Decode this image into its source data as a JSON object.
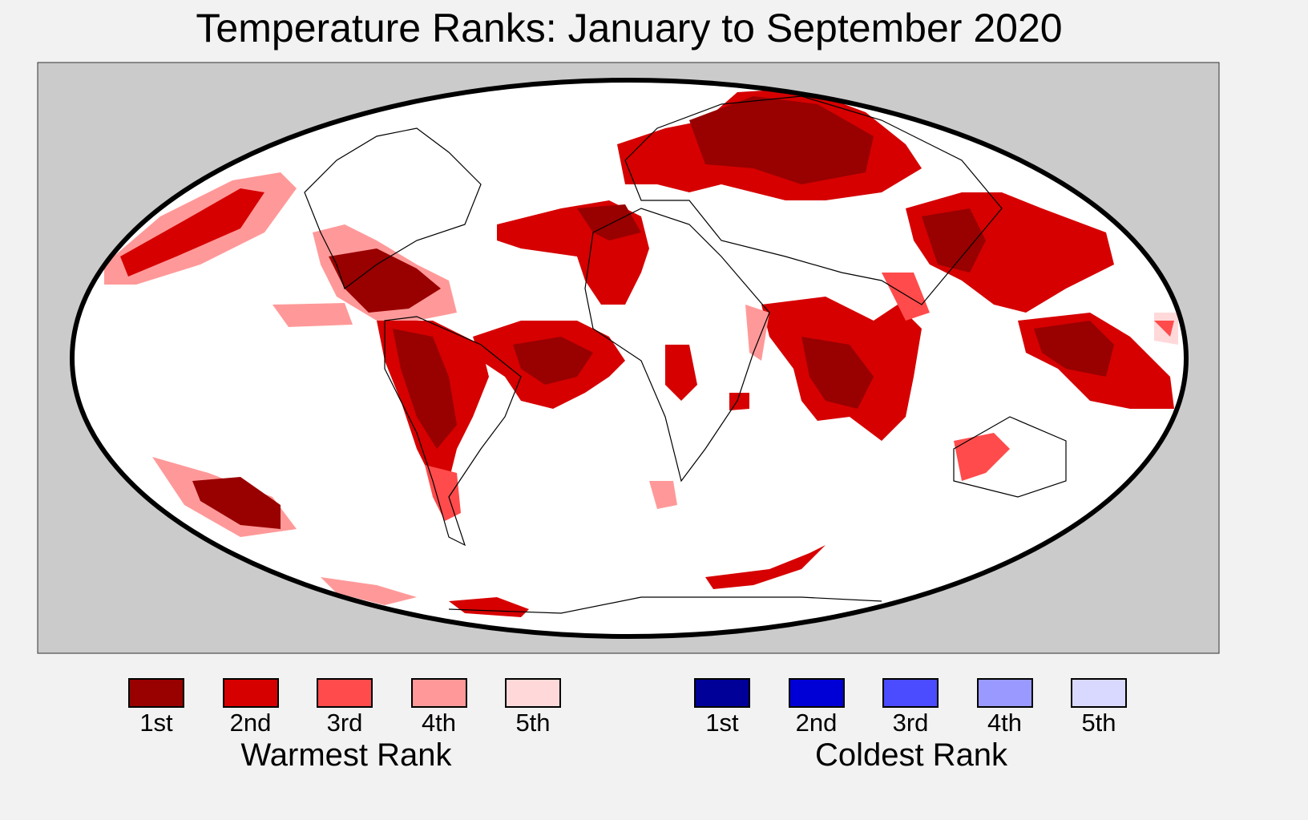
{
  "title": "Temperature Ranks: January to September 2020",
  "map": {
    "projection": "mollweide",
    "background": "#cbcbcb",
    "ocean_land_fill": "#ffffff",
    "outline": "#000000"
  },
  "legend": {
    "warmest": {
      "title": "Warmest Rank",
      "items": [
        {
          "label": "1st",
          "color": "#990000"
        },
        {
          "label": "2nd",
          "color": "#d60000"
        },
        {
          "label": "3rd",
          "color": "#ff4b4b"
        },
        {
          "label": "4th",
          "color": "#ff9999"
        },
        {
          "label": "5th",
          "color": "#ffd9d9"
        }
      ]
    },
    "coldest": {
      "title": "Coldest Rank",
      "items": [
        {
          "label": "1st",
          "color": "#000099"
        },
        {
          "label": "2nd",
          "color": "#0000d6"
        },
        {
          "label": "3rd",
          "color": "#4b4bff"
        },
        {
          "label": "4th",
          "color": "#9999ff"
        },
        {
          "label": "5th",
          "color": "#d9d9ff"
        }
      ]
    }
  }
}
